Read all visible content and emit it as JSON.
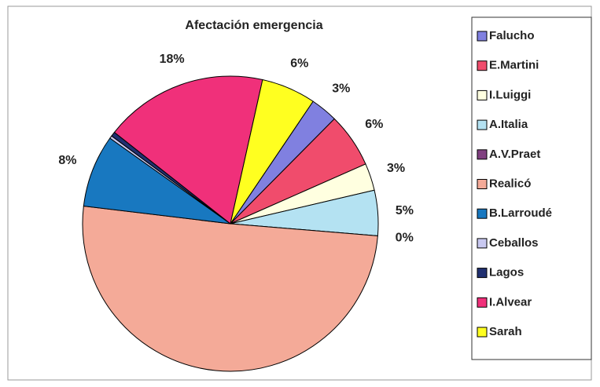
{
  "chart_data": {
    "type": "pie",
    "title": "Afectación emergencia",
    "start_angle": 34,
    "series": [
      {
        "name": "Falucho",
        "color": "#8080e0",
        "value": 3,
        "value_label": "3%"
      },
      {
        "name": "E.Martini",
        "color": "#f04c6c",
        "value": 6,
        "value_label": "6%"
      },
      {
        "name": "I.Luiggi",
        "color": "#ffffe0",
        "value": 3,
        "value_label": "3%"
      },
      {
        "name": "A.Italia",
        "color": "#b4e2f2",
        "value": 5,
        "value_label": "5%"
      },
      {
        "name": "A.V.Praet",
        "color": "#804080",
        "value": 0,
        "value_label": "0%"
      },
      {
        "name": "Realicó",
        "color": "#f4aa98",
        "value": 51,
        "value_label": "51%"
      },
      {
        "name": "B.Larroudé",
        "color": "#1878c0",
        "value": 8,
        "value_label": "8%"
      },
      {
        "name": "Ceballos",
        "color": "#c8c8f0",
        "value": 0.3,
        "value_label": null
      },
      {
        "name": "Lagos",
        "color": "#203070",
        "value": 0.5,
        "value_label": null
      },
      {
        "name": "I.Alvear",
        "color": "#f0307a",
        "value": 18,
        "value_label": "18%"
      },
      {
        "name": "Sarah",
        "color": "#ffff20",
        "value": 6,
        "value_label": "6%"
      }
    ]
  }
}
